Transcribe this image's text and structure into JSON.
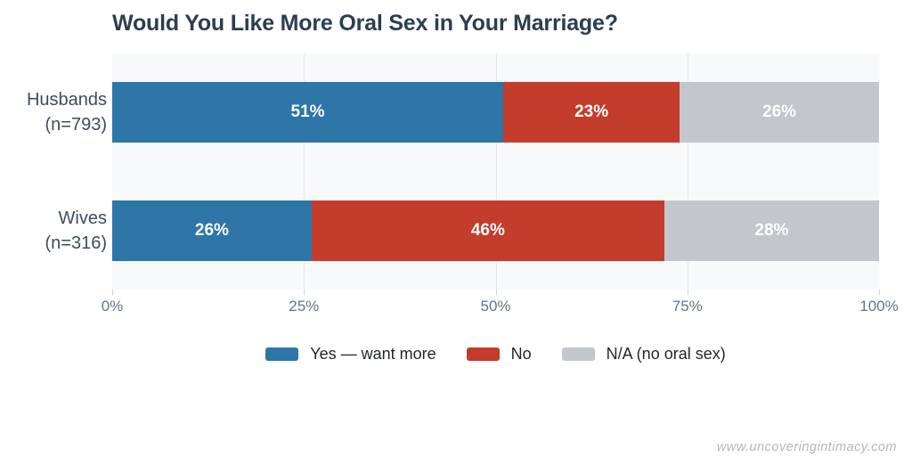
{
  "page": {
    "watermark": "www.uncoveringintimacy.com"
  },
  "chart_data": {
    "type": "bar",
    "variant": "horizontal-stacked",
    "title": "Would You Like More Oral Sex in Your Marriage?",
    "categories": [
      "Husbands (n=793)",
      "Wives (n=316)"
    ],
    "category_lines": [
      [
        "Husbands",
        "(n=793)"
      ],
      [
        "Wives",
        "(n=316)"
      ]
    ],
    "series": [
      {
        "name": "Yes — want more",
        "color": "#2e75a8",
        "values": [
          51,
          26
        ]
      },
      {
        "name": "No",
        "color": "#c43c2b",
        "values": [
          23,
          46
        ]
      },
      {
        "name": "N/A (no oral sex)",
        "color": "#c3c7cb",
        "values": [
          26,
          28
        ]
      }
    ],
    "value_suffix": "%",
    "xlim": [
      0,
      100
    ],
    "x_ticks": [
      {
        "value": 0,
        "label": "0%"
      },
      {
        "value": 25,
        "label": "25%"
      },
      {
        "value": 50,
        "label": "50%"
      },
      {
        "value": 75,
        "label": "75%"
      },
      {
        "value": 100,
        "label": "100%"
      }
    ],
    "grid": "vertical",
    "legend_position": "bottom",
    "colors": {
      "plot_background": "#f7f9fb",
      "gridline": "#e4e8ed",
      "title": "#2c3e50",
      "category_label": "#3d4d5c",
      "axis_label": "#64748b",
      "bar_label": "#ffffff",
      "watermark": "#b4b7ba"
    }
  }
}
